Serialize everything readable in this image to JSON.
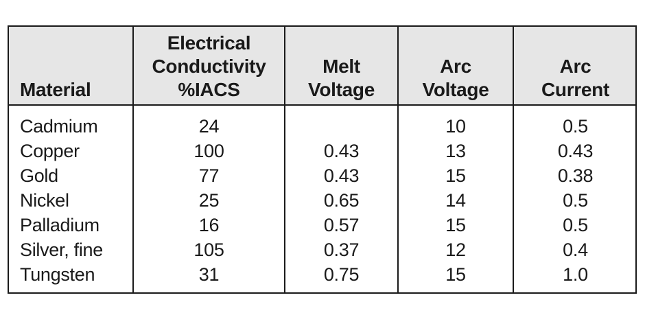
{
  "table": {
    "headers": [
      [
        "Material"
      ],
      [
        "Electrical",
        "Conductivity",
        "%IACS"
      ],
      [
        "Melt",
        "Voltage"
      ],
      [
        "Arc",
        "Voltage"
      ],
      [
        "Arc",
        "Current"
      ]
    ],
    "rows": [
      [
        "Cadmium",
        "24",
        "",
        "10",
        "0.5"
      ],
      [
        "Copper",
        "100",
        "0.43",
        "13",
        "0.43"
      ],
      [
        "Gold",
        "77",
        "0.43",
        "15",
        "0.38"
      ],
      [
        "Nickel",
        "25",
        "0.65",
        "14",
        "0.5"
      ],
      [
        "Palladium",
        "16",
        "0.57",
        "15",
        "0.5"
      ],
      [
        "Silver, fine",
        "105",
        "0.37",
        "12",
        "0.4"
      ],
      [
        "Tungsten",
        "31",
        "0.75",
        "15",
        "1.0"
      ]
    ],
    "header_background": "#e6e6e6",
    "border_color": "#1a1a1a"
  }
}
